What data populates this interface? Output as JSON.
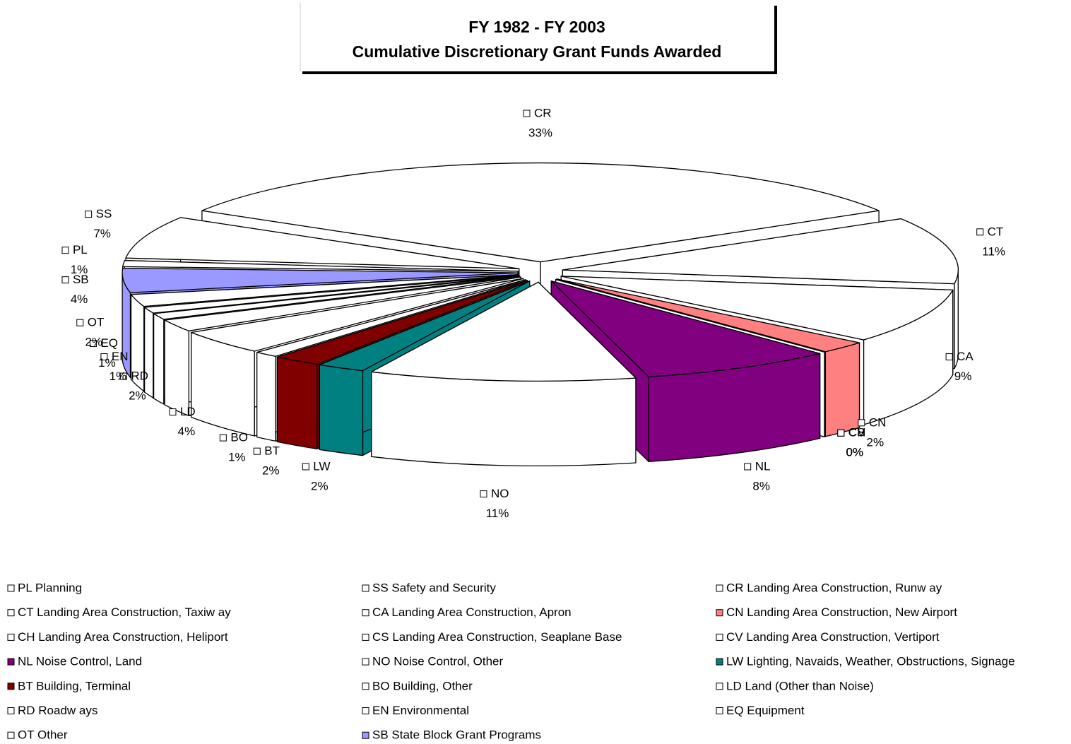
{
  "chart_data": {
    "type": "pie3d",
    "title": "FY 1982 - FY 2003",
    "subtitle": "Cumulative Discretionary Grant Funds Awarded",
    "categories": [
      "PL",
      "SS",
      "CR",
      "CT",
      "CA",
      "CN",
      "CH",
      "CS",
      "CV",
      "NL",
      "NO",
      "LW",
      "BT",
      "BO",
      "LD",
      "RD",
      "EN",
      "EQ",
      "OT",
      "SB"
    ],
    "values": [
      1,
      7,
      33,
      11,
      9,
      2,
      0,
      0,
      0,
      8,
      11,
      2,
      2,
      1,
      4,
      2,
      1,
      1,
      2,
      4
    ],
    "value_labels": [
      "1%",
      "7%",
      "33%",
      "11%",
      "9%",
      "2%",
      "0%",
      "0%",
      "0%",
      "8%",
      "11%",
      "2%",
      "2%",
      "1%",
      "4%",
      "2%",
      "1%",
      "1%",
      "2%",
      "4%"
    ],
    "colors": [
      "#ffffff",
      "#ffffff",
      "#ffffff",
      "#ffffff",
      "#ffffff",
      "#ff8080",
      "#ffffff",
      "#ffffff",
      "#ffffff",
      "#800080",
      "#ffffff",
      "#008080",
      "#800000",
      "#ffffff",
      "#ffffff",
      "#ffffff",
      "#ffffff",
      "#ffffff",
      "#ffffff",
      "#9999ff"
    ],
    "legend": [
      "PL Planning",
      "SS Safety and Security",
      "CR Landing Area Construction, Runw ay",
      "CT Landing Area Construction, Taxiw ay",
      "CA Landing Area Construction, Apron",
      "CN Landing Area Construction, New  Airport",
      "CH Landing Area Construction, Heliport",
      "CS Landing Area Construction, Seaplane Base",
      "CV Landing Area Construction, Vertiport",
      "NL Noise Control, Land",
      "NO Noise Control, Other",
      "LW Lighting, Navaids, Weather, Obstructions, Signage",
      "BT Building, Terminal",
      "BO Building, Other",
      "LD Land (Other than Noise)",
      "RD Roadw ays",
      "EN Environmental",
      "EQ Equipment",
      "OT Other",
      "SB State Block Grant Programs"
    ]
  }
}
